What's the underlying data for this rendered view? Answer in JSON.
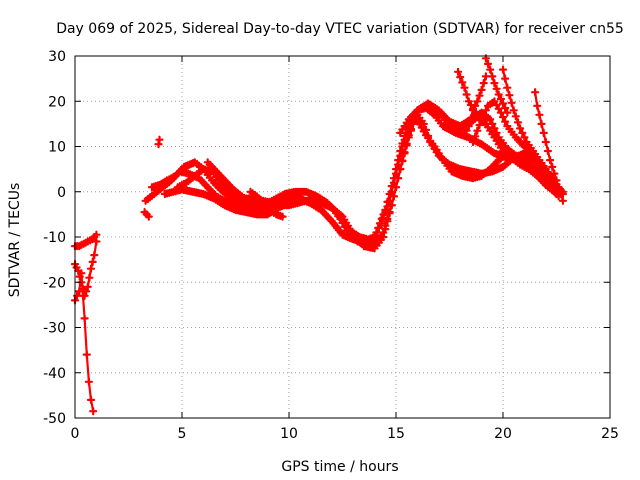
{
  "chart_data": {
    "type": "line",
    "title": "Day 069 of 2025, Sidereal Day-to-day VTEC variation (SDTVAR) for receiver cn55",
    "xlabel": "GPS time / hours",
    "ylabel": "SDTVAR / TECUs",
    "xlim": [
      0,
      25
    ],
    "ylim": [
      -50,
      30
    ],
    "xticks": [
      0,
      5,
      10,
      15,
      20,
      25
    ],
    "yticks": [
      -50,
      -40,
      -30,
      -20,
      -10,
      0,
      10,
      20,
      30
    ],
    "grid": true,
    "marker": "+",
    "color": "#ff0000",
    "series": [
      {
        "name": "s1",
        "x": [
          0.0,
          0.2,
          0.3,
          0.45,
          0.55,
          0.65,
          0.75,
          0.85
        ],
        "y": [
          -24,
          -22,
          -18,
          -28,
          -36,
          -42,
          -46,
          -48.5
        ]
      },
      {
        "name": "s2",
        "x": [
          0.0,
          0.2,
          0.4,
          0.6,
          0.8,
          1.0
        ],
        "y": [
          -12,
          -12,
          -11.5,
          -11,
          -10.5,
          -9.5
        ]
      },
      {
        "name": "s3",
        "x": [
          0.0,
          0.15,
          0.3,
          0.45,
          0.6,
          0.75,
          0.9,
          1.0
        ],
        "y": [
          -16,
          -17.5,
          -20,
          -23,
          -21,
          -17,
          -14,
          -11
        ]
      },
      {
        "name": "s4",
        "x": [
          3.25,
          3.45
        ],
        "y": [
          -4.5,
          -5.5
        ]
      },
      {
        "name": "s5",
        "x": [
          3.9,
          3.95
        ],
        "y": [
          10.5,
          11.5
        ]
      },
      {
        "name": "s6",
        "x": [
          3.3,
          3.7,
          4.1,
          4.5,
          4.9,
          5.3,
          5.8,
          6.2,
          6.6,
          7.0,
          7.5,
          8.0,
          8.5,
          9.0,
          9.5,
          10.0,
          10.5,
          11.0,
          11.5,
          12.0,
          12.5,
          13.0,
          13.5,
          13.9,
          14.3,
          14.7,
          15.0,
          15.3,
          15.6,
          16.0,
          16.3,
          16.6,
          17.0,
          17.5,
          18.0,
          18.5,
          19.0,
          19.5,
          20.0,
          20.5,
          21.0,
          21.5,
          22.0,
          22.4,
          22.8
        ],
        "y": [
          -2,
          -0.5,
          1,
          2.5,
          4.5,
          4,
          3,
          1,
          -1,
          -2,
          -2.5,
          -3,
          -3.5,
          -3,
          -2,
          -1.5,
          -1.5,
          -2.5,
          -4,
          -6.5,
          -9.5,
          -10.5,
          -11,
          -11,
          -7,
          -2,
          4,
          10,
          14.5,
          17,
          15,
          11,
          8,
          6,
          5,
          4.5,
          4,
          4.5,
          5.5,
          7.5,
          8.5,
          7,
          4,
          1.5,
          -0.5
        ]
      },
      {
        "name": "s7",
        "x": [
          3.6,
          3.95,
          4.3,
          4.7,
          5.1,
          5.6,
          6.0,
          6.4,
          6.8,
          7.2,
          7.7,
          8.2,
          8.6,
          9.0,
          9.4,
          9.8,
          10.3,
          10.8,
          11.3,
          11.8,
          12.3,
          12.8,
          13.3,
          13.7,
          14.0,
          14.5,
          14.9,
          15.2,
          15.5,
          15.8,
          16.1,
          16.4,
          16.8,
          17.2,
          17.6,
          18.1,
          18.6,
          19.0,
          19.4,
          19.8,
          20.2,
          20.6,
          21.0,
          21.4,
          21.8,
          22.2,
          22.6
        ],
        "y": [
          1,
          1.5,
          2.5,
          3.5,
          5.5,
          6.5,
          5,
          2.5,
          0.5,
          -1,
          -1.5,
          -2,
          -2.5,
          -2.5,
          -1.5,
          -0.5,
          0,
          0,
          -1,
          -2.5,
          -5,
          -8.5,
          -10,
          -10.5,
          -10,
          -4,
          3,
          9,
          14,
          16.5,
          15,
          12.5,
          10,
          7,
          4.5,
          3.5,
          3,
          3.5,
          5,
          7,
          8.5,
          8,
          7,
          5,
          3,
          1,
          -1
        ]
      },
      {
        "name": "s8",
        "x": [
          4.2,
          4.6,
          5.0,
          5.5,
          6.0,
          6.5,
          7.0,
          7.5,
          8.0,
          8.5,
          9.0,
          9.5,
          10.0,
          10.5,
          11.0,
          11.5,
          12.0,
          12.5,
          13.0,
          13.5,
          14.0,
          14.4,
          14.8,
          15.2,
          15.6,
          16.0,
          16.4,
          16.8,
          17.2,
          17.8,
          18.4,
          19.0,
          19.6,
          20.2,
          20.8,
          21.2,
          21.6,
          22.0,
          22.4,
          22.8
        ],
        "y": [
          -0.5,
          0,
          0.5,
          0,
          -0.5,
          -1.5,
          -3,
          -4,
          -4.5,
          -5,
          -5,
          -3.5,
          -2.5,
          -2,
          -2,
          -2.5,
          -3.5,
          -5.5,
          -9.5,
          -12,
          -12.5,
          -10,
          -3,
          5,
          12,
          18,
          18.5,
          17,
          14.5,
          13,
          12,
          10.5,
          8.5,
          7.5,
          7.5,
          6.5,
          4.5,
          3,
          1.5,
          0
        ]
      },
      {
        "name": "s9",
        "x": [
          4.8,
          5.2,
          5.6,
          6.0,
          6.4,
          6.8,
          7.2,
          7.6,
          8.0,
          8.4,
          8.8,
          9.2,
          9.6,
          10.0,
          10.4,
          10.8,
          11.2,
          11.6,
          12.0,
          12.4,
          12.8,
          13.2,
          13.6,
          14.0,
          14.4,
          14.8,
          15.2,
          15.6,
          16.0,
          16.5,
          17.0,
          17.5,
          18.0,
          18.5,
          19.0,
          19.4,
          19.8,
          20.2,
          20.6,
          21.0,
          21.4,
          21.8,
          22.2,
          22.6
        ],
        "y": [
          1,
          2,
          3.5,
          5,
          4.5,
          2,
          0,
          -1,
          -1.5,
          -1.5,
          -2,
          -2.5,
          -3,
          -3,
          -2.5,
          -2,
          -2,
          -2.5,
          -3.5,
          -6,
          -9.5,
          -11,
          -11.5,
          -11.5,
          -9,
          -3,
          5,
          12.5,
          18,
          19.5,
          18,
          15.5,
          14.5,
          16,
          17.5,
          16,
          12,
          9.5,
          8,
          7.5,
          8,
          6,
          3,
          0.5
        ]
      },
      {
        "name": "s10",
        "x": [
          6.2,
          6.5,
          6.8,
          7.1,
          7.4,
          7.8,
          8.2,
          8.6,
          9.0,
          9.3
        ],
        "y": [
          6.5,
          5,
          3.5,
          2,
          0.5,
          -1,
          -2.5,
          -3,
          -3.5,
          -4
        ]
      },
      {
        "name": "s11",
        "x": [
          8.2,
          8.5,
          8.8,
          9.1,
          9.4,
          9.7
        ],
        "y": [
          0,
          -1,
          -2.5,
          -4,
          -5,
          -5.5
        ]
      },
      {
        "name": "s12",
        "x": [
          15.2,
          15.6,
          16.0,
          16.4,
          16.8,
          17.2,
          17.6,
          18.0,
          18.4,
          18.8,
          19.2,
          19.6,
          20.0,
          20.4,
          20.8,
          21.2,
          21.6,
          22.0,
          22.4
        ],
        "y": [
          13,
          16,
          18,
          19,
          18.5,
          16.5,
          14.5,
          14,
          15,
          16.5,
          15,
          12,
          9,
          7.5,
          6,
          5,
          3.5,
          1.5,
          0
        ]
      },
      {
        "name": "s13",
        "x": [
          17.9,
          18.2,
          18.4,
          18.7,
          19.0
        ],
        "y": [
          26.5,
          23,
          20,
          17.5,
          16
        ]
      },
      {
        "name": "s14",
        "x": [
          18.2,
          18.4,
          18.6,
          18.8,
          19.0,
          19.2
        ],
        "y": [
          12.5,
          14.5,
          18,
          20,
          22.5,
          25.5
        ]
      },
      {
        "name": "s15",
        "x": [
          18.6,
          18.8,
          19.0,
          19.3,
          19.6,
          19.9,
          20.2,
          20.6,
          21.0,
          21.4
        ],
        "y": [
          11,
          13.5,
          16,
          19,
          20,
          17.5,
          14.5,
          12,
          10,
          8.5
        ]
      },
      {
        "name": "s16",
        "x": [
          19.2,
          19.4,
          19.6,
          19.8,
          20.0,
          20.2
        ],
        "y": [
          29.5,
          27,
          24,
          21.5,
          19.5,
          17.5
        ]
      },
      {
        "name": "s17",
        "x": [
          20.0,
          20.2,
          20.5,
          20.8,
          21.1,
          21.4,
          21.7,
          22.0,
          22.3,
          22.6
        ],
        "y": [
          27,
          23,
          18,
          14,
          11,
          9,
          7,
          5,
          3,
          1
        ]
      },
      {
        "name": "s18",
        "x": [
          21.5,
          21.6,
          21.8,
          22.0,
          22.2,
          22.4,
          22.6,
          22.8
        ],
        "y": [
          22,
          19,
          15,
          11,
          7,
          4,
          1,
          -2
        ]
      }
    ]
  }
}
